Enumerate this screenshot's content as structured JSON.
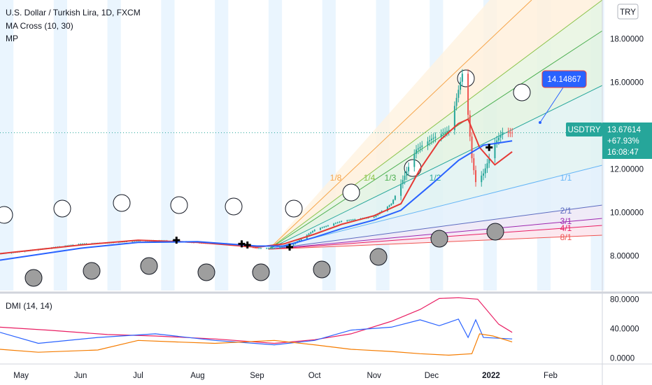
{
  "chart_data": {
    "type": "line",
    "title": "U.S. Dollar / Turkish Lira, 1D, FXCM",
    "indicators": [
      "MA Cross (10, 30)",
      "MP"
    ],
    "currency_button": "TRY",
    "symbol_tag": "USDTRY",
    "last_price": "13.67614",
    "change_pct": "+67.93%",
    "countdown": "16:08:47",
    "callout_value": "14.14867",
    "x_labels": [
      "May",
      "Jun",
      "Jul",
      "Aug",
      "Sep",
      "Oct",
      "Nov",
      "Dec",
      "2022",
      "Feb"
    ],
    "xlim": [
      "2021-04-20",
      "2022-02-28"
    ],
    "ylim": [
      6.4,
      19.8
    ],
    "y_ticks": [
      "18.00000",
      "16.00000",
      "14.00000",
      "12.00000",
      "10.00000",
      "8.00000"
    ],
    "fan_labels": [
      "1/8",
      "1/4",
      "1/3",
      "1/2",
      "1/1",
      "2/1",
      "3/1",
      "4/1",
      "8/1"
    ],
    "fan_colors": [
      "#f6a54a",
      "#8bc34a",
      "#4caf50",
      "#26a69a",
      "#64b5f6",
      "#5c6bc0",
      "#9c27b0",
      "#e91e63",
      "#ef5350"
    ],
    "series": [
      {
        "name": "USDTRY",
        "x": [
          "2021-04-20",
          "2021-05-01",
          "2021-05-15",
          "2021-06-01",
          "2021-06-15",
          "2021-07-01",
          "2021-07-15",
          "2021-08-01",
          "2021-08-15",
          "2021-09-01",
          "2021-09-10",
          "2021-09-20",
          "2021-10-01",
          "2021-10-15",
          "2021-11-01",
          "2021-11-10",
          "2021-11-16",
          "2021-11-23",
          "2021-12-01",
          "2021-12-10",
          "2021-12-17",
          "2021-12-20",
          "2021-12-22",
          "2021-12-24",
          "2021-12-28",
          "2022-01-03",
          "2022-01-07",
          "2022-01-12"
        ],
        "values": [
          8.1,
          8.2,
          8.35,
          8.55,
          8.6,
          8.7,
          8.7,
          8.6,
          8.55,
          8.35,
          8.35,
          8.55,
          9.2,
          9.6,
          9.8,
          10.4,
          11.5,
          12.9,
          13.4,
          13.8,
          16.4,
          14.5,
          12.5,
          11.4,
          11.8,
          13.2,
          13.7,
          13.68
        ]
      },
      {
        "name": "MA 10",
        "x": [
          "2021-04-20",
          "2021-06-01",
          "2021-07-01",
          "2021-08-01",
          "2021-09-01",
          "2021-09-15",
          "2021-10-01",
          "2021-10-15",
          "2021-11-01",
          "2021-11-15",
          "2021-11-25",
          "2021-12-05",
          "2021-12-15",
          "2021-12-20",
          "2021-12-26",
          "2022-01-03",
          "2022-01-12"
        ],
        "values": [
          8.1,
          8.5,
          8.72,
          8.62,
          8.4,
          8.55,
          9.0,
          9.45,
          9.85,
          10.4,
          12.0,
          13.3,
          14.1,
          14.3,
          13.0,
          12.2,
          12.8
        ]
      },
      {
        "name": "MA 30",
        "x": [
          "2021-04-20",
          "2021-06-01",
          "2021-07-01",
          "2021-08-01",
          "2021-09-01",
          "2021-09-15",
          "2021-10-01",
          "2021-10-15",
          "2021-11-01",
          "2021-11-15",
          "2021-12-01",
          "2021-12-15",
          "2021-12-28",
          "2022-01-12"
        ],
        "values": [
          7.8,
          8.35,
          8.62,
          8.65,
          8.45,
          8.45,
          8.85,
          9.25,
          9.65,
          10.1,
          11.3,
          12.4,
          13.1,
          13.3
        ]
      }
    ],
    "markers": {
      "x": [
        "2021-07-21",
        "2021-08-24",
        "2021-08-27",
        "2021-09-18",
        "2021-12-31"
      ],
      "values": [
        8.72,
        8.55,
        8.5,
        8.4,
        13.0
      ]
    },
    "dmi": {
      "title": "DMI (14, 14)",
      "ylim": [
        -8,
        88
      ],
      "y_ticks": [
        "80.0000",
        "40.0000",
        "0.0000"
      ],
      "adx": {
        "x": [
          "2021-04-20",
          "2021-05-15",
          "2021-06-15",
          "2021-07-10",
          "2021-08-10",
          "2021-09-10",
          "2021-10-01",
          "2021-10-20",
          "2021-11-10",
          "2021-11-25",
          "2021-12-05",
          "2021-12-15",
          "2021-12-25",
          "2022-01-05",
          "2022-01-12"
        ],
        "values": [
          42,
          38,
          32,
          30,
          26,
          20,
          25,
          33,
          50,
          66,
          81,
          82,
          80,
          46,
          35
        ]
      },
      "di_plus": {
        "x": [
          "2021-04-20",
          "2021-05-10",
          "2021-06-10",
          "2021-07-10",
          "2021-08-10",
          "2021-09-10",
          "2021-10-01",
          "2021-10-20",
          "2021-11-10",
          "2021-11-25",
          "2021-12-05",
          "2021-12-15",
          "2021-12-20",
          "2021-12-24",
          "2021-12-28",
          "2022-01-12"
        ],
        "values": [
          35,
          20,
          28,
          33,
          24,
          18,
          24,
          38,
          42,
          52,
          44,
          53,
          28,
          52,
          28,
          26
        ]
      },
      "di_minus": {
        "x": [
          "2021-04-20",
          "2021-05-10",
          "2021-06-10",
          "2021-07-01",
          "2021-07-20",
          "2021-08-10",
          "2021-09-10",
          "2021-10-01",
          "2021-10-20",
          "2021-11-10",
          "2021-11-25",
          "2021-12-10",
          "2021-12-22",
          "2021-12-26",
          "2022-01-02",
          "2022-01-12"
        ],
        "values": [
          12,
          8,
          11,
          24,
          22,
          20,
          24,
          18,
          12,
          9,
          6,
          4,
          6,
          33,
          30,
          22
        ]
      }
    }
  }
}
